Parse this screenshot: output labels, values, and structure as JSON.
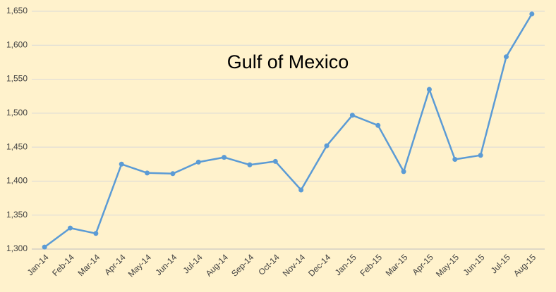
{
  "chart_data": {
    "type": "line",
    "title": "Gulf of Mexico",
    "categories": [
      "Jan-14",
      "Feb-14",
      "Mar-14",
      "Apr-14",
      "May-14",
      "Jun-14",
      "Jul-14",
      "Aug-14",
      "Sep-14",
      "Oct-14",
      "Nov-14",
      "Dec-14",
      "Jan-15",
      "Feb-15",
      "Mar-15",
      "Apr-15",
      "May-15",
      "Jun-15",
      "Jul-15",
      "Aug-15"
    ],
    "values": [
      1303,
      1331,
      1323,
      1425,
      1412,
      1411,
      1428,
      1435,
      1424,
      1429,
      1387,
      1452,
      1497,
      1482,
      1414,
      1535,
      1432,
      1438,
      1583,
      1646
    ],
    "color": "#5b9bd5",
    "ylim": [
      1300,
      1650
    ],
    "yticks": [
      {
        "value": 1300,
        "label": "1,300"
      },
      {
        "value": 1350,
        "label": "1,350"
      },
      {
        "value": 1400,
        "label": "1,400"
      },
      {
        "value": 1450,
        "label": "1,450"
      },
      {
        "value": 1500,
        "label": "1,500"
      },
      {
        "value": 1550,
        "label": "1,550"
      },
      {
        "value": 1600,
        "label": "1,600"
      },
      {
        "value": 1650,
        "label": "1,650"
      }
    ],
    "grid": true
  }
}
